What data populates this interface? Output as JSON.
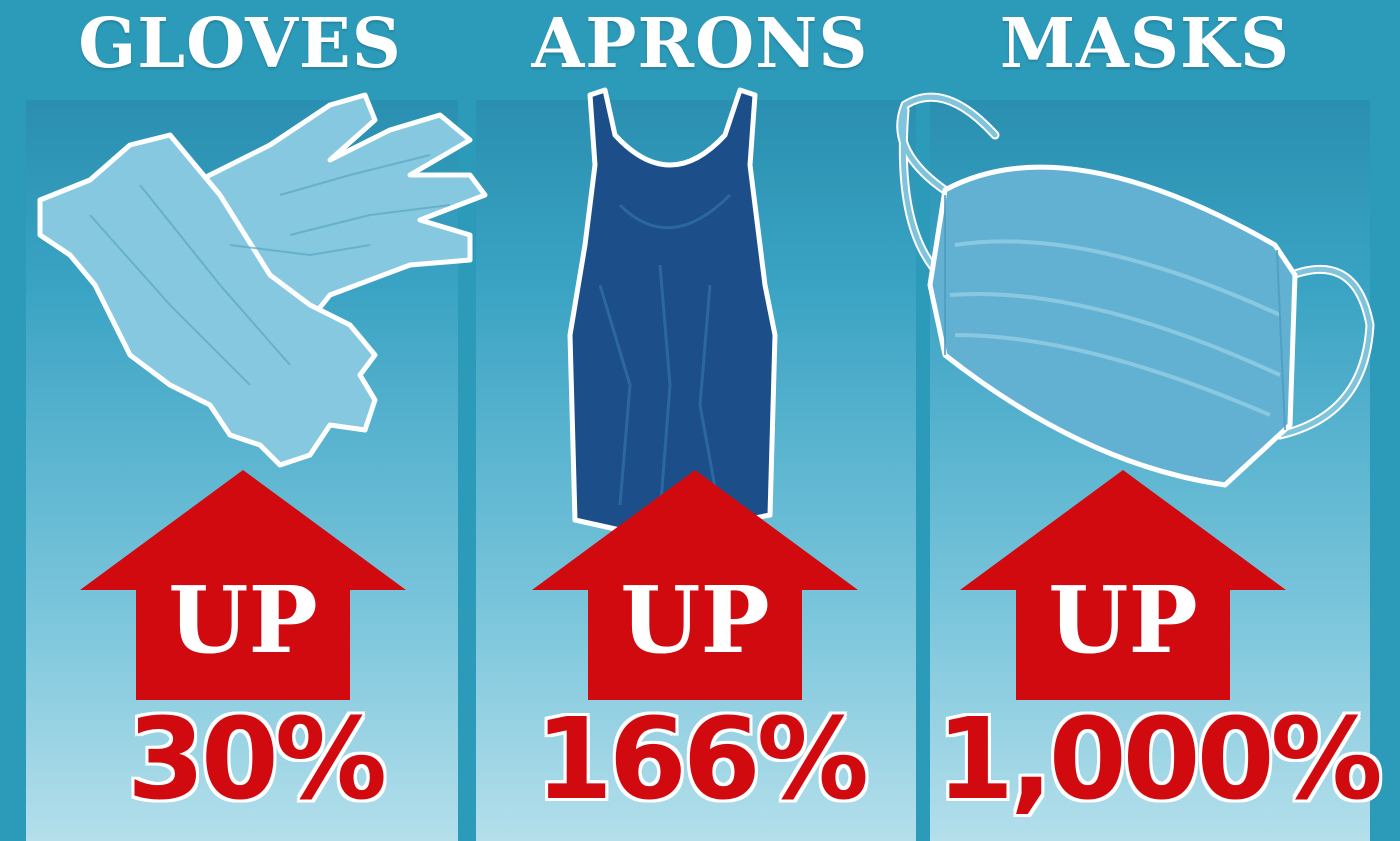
{
  "columns": [
    {
      "heading": "GLOVES",
      "up_label": "UP",
      "percentage": "30%",
      "icon": "gloves-icon"
    },
    {
      "heading": "APRONS",
      "up_label": "UP",
      "percentage": "166%",
      "icon": "apron-icon"
    },
    {
      "heading": "MASKS",
      "up_label": "UP",
      "percentage": "1,000%",
      "icon": "mask-icon"
    }
  ],
  "colors": {
    "background": "#2c9ab9",
    "arrow": "#d10a10",
    "text": "#ffffff",
    "glove": "#7fc4dc",
    "apron": "#1c4f8a",
    "mask": "#5fb0d4"
  }
}
